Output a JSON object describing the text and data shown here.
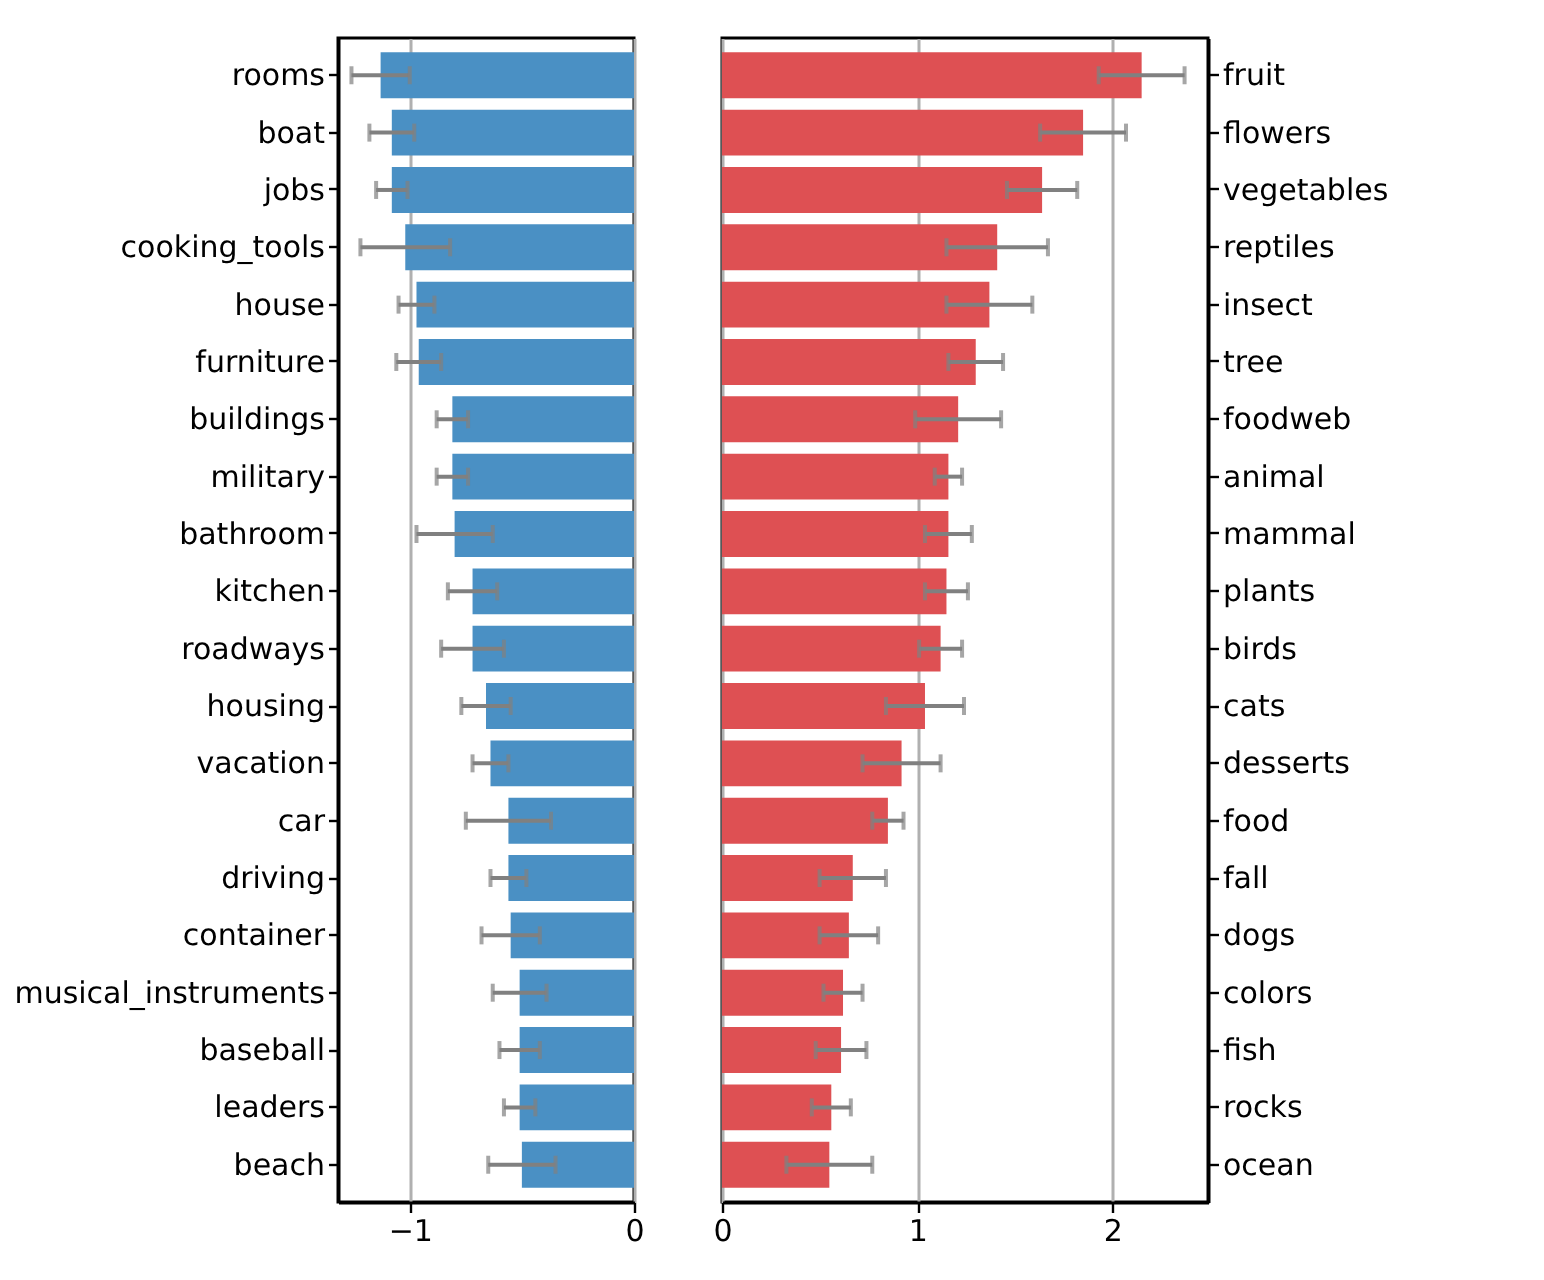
{
  "chart_data": [
    {
      "type": "bar",
      "orientation": "horizontal",
      "categories": [
        "rooms",
        "boat",
        "jobs",
        "cooking_tools",
        "house",
        "furniture",
        "buildings",
        "military",
        "bathroom",
        "kitchen",
        "roadways",
        "housing",
        "vacation",
        "car",
        "driving",
        "container",
        "musical_instruments",
        "baseball",
        "leaders",
        "beach"
      ],
      "values": [
        -1.13,
        -1.08,
        -1.08,
        -1.02,
        -0.97,
        -0.96,
        -0.81,
        -0.81,
        -0.8,
        -0.72,
        -0.72,
        -0.66,
        -0.64,
        -0.56,
        -0.56,
        -0.55,
        -0.51,
        -0.51,
        -0.51,
        -0.5
      ],
      "errors": [
        0.13,
        0.1,
        0.07,
        0.2,
        0.08,
        0.1,
        0.07,
        0.07,
        0.17,
        0.11,
        0.14,
        0.11,
        0.08,
        0.19,
        0.08,
        0.13,
        0.12,
        0.09,
        0.07,
        0.15
      ],
      "color": "#4a90c4",
      "xlim": [
        -1.32,
        0
      ],
      "xticks": [
        -1,
        0
      ],
      "grid": "x"
    },
    {
      "type": "bar",
      "orientation": "horizontal",
      "categories": [
        "fruit",
        "flowers",
        "vegetables",
        "reptiles",
        "insect",
        "tree",
        "foodweb",
        "animal",
        "mammal",
        "plants",
        "birds",
        "cats",
        "desserts",
        "food",
        "fall",
        "dogs",
        "colors",
        "fish",
        "rocks",
        "ocean"
      ],
      "values": [
        2.15,
        1.85,
        1.64,
        1.41,
        1.37,
        1.3,
        1.21,
        1.16,
        1.16,
        1.15,
        1.12,
        1.04,
        0.92,
        0.85,
        0.67,
        0.65,
        0.62,
        0.61,
        0.56,
        0.55
      ],
      "errors": [
        0.22,
        0.22,
        0.18,
        0.26,
        0.22,
        0.14,
        0.22,
        0.07,
        0.12,
        0.11,
        0.11,
        0.2,
        0.2,
        0.08,
        0.17,
        0.15,
        0.1,
        0.13,
        0.1,
        0.22
      ],
      "color": "#de5053",
      "xlim": [
        0,
        2.49
      ],
      "xticks": [
        0,
        1,
        2
      ],
      "grid": "x"
    }
  ]
}
